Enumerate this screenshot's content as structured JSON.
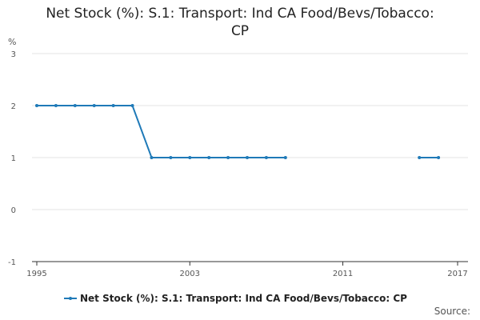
{
  "title_lines": [
    "Net Stock (%): S.1: Transport: Ind CA Food/Bevs/Tobacco:",
    "CP"
  ],
  "source_label": "Source:",
  "colors": {
    "series": "#1f7ab8",
    "grid": "#e3e3e3",
    "axis": "#333333"
  },
  "chart_data": {
    "type": "line",
    "title": "Net Stock (%): S.1: Transport: Ind CA Food/Bevs/Tobacco: CP",
    "ylabel": "%",
    "xlabel": "",
    "xlim": [
      1995,
      2017
    ],
    "ylim": [
      -1,
      3
    ],
    "x_ticks": [
      1995,
      2003,
      2011,
      2017
    ],
    "y_ticks": [
      -1,
      0,
      1,
      2,
      3
    ],
    "grid": "horizontal",
    "legend_position": "bottom",
    "series": [
      {
        "name": "Net Stock (%): S.1: Transport: Ind CA Food/Bevs/Tobacco: CP",
        "points": [
          {
            "x": 1995,
            "y": 2
          },
          {
            "x": 1996,
            "y": 2
          },
          {
            "x": 1997,
            "y": 2
          },
          {
            "x": 1998,
            "y": 2
          },
          {
            "x": 1999,
            "y": 2
          },
          {
            "x": 2000,
            "y": 2
          },
          {
            "x": 2001,
            "y": 1
          },
          {
            "x": 2002,
            "y": 1
          },
          {
            "x": 2003,
            "y": 1
          },
          {
            "x": 2004,
            "y": 1
          },
          {
            "x": 2005,
            "y": 1
          },
          {
            "x": 2006,
            "y": 1
          },
          {
            "x": 2007,
            "y": 1
          },
          {
            "x": 2008,
            "y": 1
          },
          {
            "x": 2009,
            "y": null
          },
          {
            "x": 2010,
            "y": null
          },
          {
            "x": 2011,
            "y": null
          },
          {
            "x": 2012,
            "y": null
          },
          {
            "x": 2013,
            "y": null
          },
          {
            "x": 2014,
            "y": null
          },
          {
            "x": 2015,
            "y": 1
          },
          {
            "x": 2016,
            "y": 1
          }
        ]
      }
    ]
  }
}
